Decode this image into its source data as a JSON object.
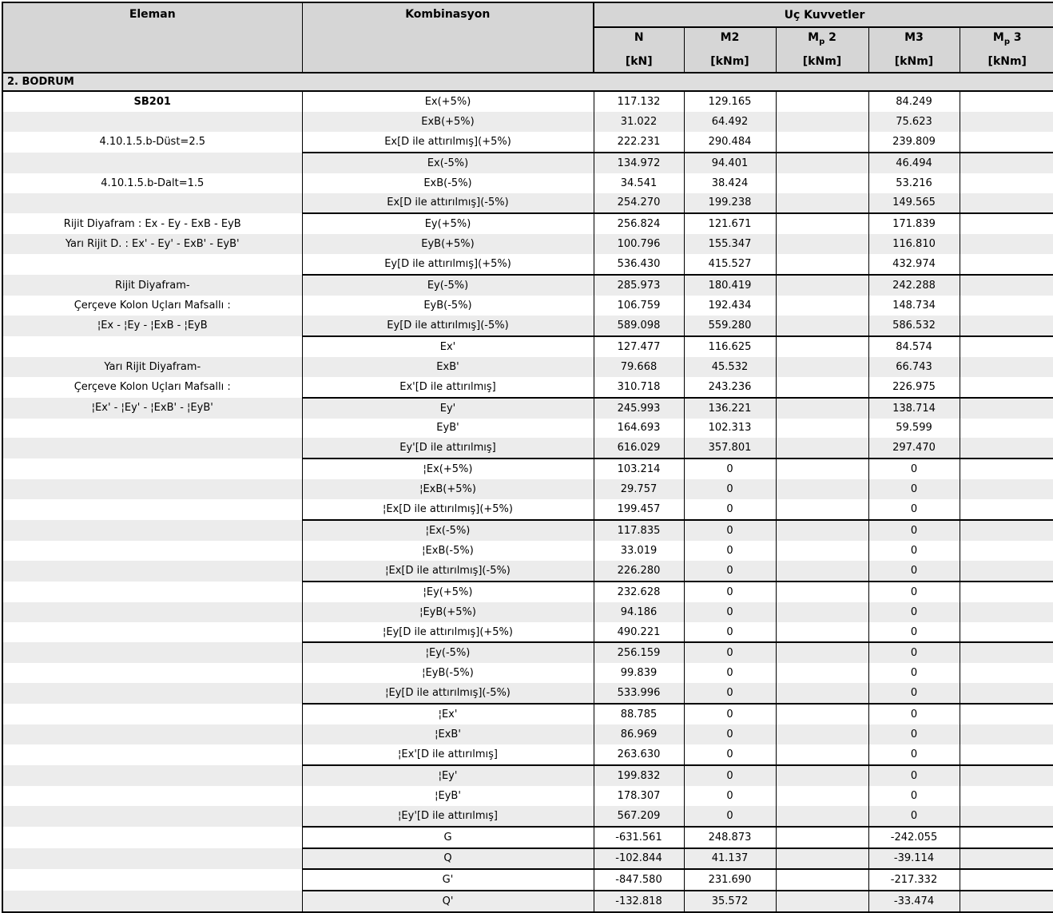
{
  "table": {
    "header": {
      "eleman": "Eleman",
      "kombinasyon": "Kombinasyon",
      "uc_kuvvetler": "Uç Kuvvetler",
      "cols": [
        {
          "main": "N",
          "sub": "",
          "tail": "",
          "unit": "[kN]"
        },
        {
          "main": "M2",
          "sub": "",
          "tail": "",
          "unit": "[kNm]"
        },
        {
          "main": "M",
          "sub": "p",
          "tail": " 2",
          "unit": "[kNm]"
        },
        {
          "main": "M3",
          "sub": "",
          "tail": "",
          "unit": "[kNm]"
        },
        {
          "main": "M",
          "sub": "p",
          "tail": " 3",
          "unit": "[kNm]"
        }
      ]
    },
    "section_title": "2. BODRUM",
    "rows": [
      {
        "eleman": "SB201",
        "eleman_bold": true,
        "komb": "Ex(+5%)",
        "n": "117.132",
        "m2": "129.165",
        "mp2": "",
        "m3": "84.249",
        "mp3": "",
        "group_end": false
      },
      {
        "eleman": "",
        "eleman_bold": false,
        "komb": "ExB(+5%)",
        "n": "31.022",
        "m2": "64.492",
        "mp2": "",
        "m3": "75.623",
        "mp3": "",
        "group_end": false
      },
      {
        "eleman": "4.10.1.5.b-Düst=2.5",
        "eleman_bold": false,
        "komb": "Ex[D ile attırılmış](+5%)",
        "n": "222.231",
        "m2": "290.484",
        "mp2": "",
        "m3": "239.809",
        "mp3": "",
        "group_end": true
      },
      {
        "eleman": "",
        "eleman_bold": false,
        "komb": "Ex(-5%)",
        "n": "134.972",
        "m2": "94.401",
        "mp2": "",
        "m3": "46.494",
        "mp3": "",
        "group_end": false
      },
      {
        "eleman": "4.10.1.5.b-Dalt=1.5",
        "eleman_bold": false,
        "komb": "ExB(-5%)",
        "n": "34.541",
        "m2": "38.424",
        "mp2": "",
        "m3": "53.216",
        "mp3": "",
        "group_end": false
      },
      {
        "eleman": "",
        "eleman_bold": false,
        "komb": "Ex[D ile attırılmış](-5%)",
        "n": "254.270",
        "m2": "199.238",
        "mp2": "",
        "m3": "149.565",
        "mp3": "",
        "group_end": true
      },
      {
        "eleman": "Rijit Diyafram : Ex - Ey - ExB - EyB",
        "eleman_bold": false,
        "komb": "Ey(+5%)",
        "n": "256.824",
        "m2": "121.671",
        "mp2": "",
        "m3": "171.839",
        "mp3": "",
        "group_end": false
      },
      {
        "eleman": "Yarı Rijit D. : Ex' - Ey' - ExB' - EyB'",
        "eleman_bold": false,
        "komb": "EyB(+5%)",
        "n": "100.796",
        "m2": "155.347",
        "mp2": "",
        "m3": "116.810",
        "mp3": "",
        "group_end": false
      },
      {
        "eleman": "",
        "eleman_bold": false,
        "komb": "Ey[D ile attırılmış](+5%)",
        "n": "536.430",
        "m2": "415.527",
        "mp2": "",
        "m3": "432.974",
        "mp3": "",
        "group_end": true
      },
      {
        "eleman": "Rijit Diyafram-",
        "eleman_bold": false,
        "komb": "Ey(-5%)",
        "n": "285.973",
        "m2": "180.419",
        "mp2": "",
        "m3": "242.288",
        "mp3": "",
        "group_end": false
      },
      {
        "eleman": "Çerçeve Kolon Uçları Mafsallı :",
        "eleman_bold": false,
        "komb": "EyB(-5%)",
        "n": "106.759",
        "m2": "192.434",
        "mp2": "",
        "m3": "148.734",
        "mp3": "",
        "group_end": false
      },
      {
        "eleman": "¦Ex - ¦Ey - ¦ExB - ¦EyB",
        "eleman_bold": false,
        "komb": "Ey[D ile attırılmış](-5%)",
        "n": "589.098",
        "m2": "559.280",
        "mp2": "",
        "m3": "586.532",
        "mp3": "",
        "group_end": true
      },
      {
        "eleman": "",
        "eleman_bold": false,
        "komb": "Ex'",
        "n": "127.477",
        "m2": "116.625",
        "mp2": "",
        "m3": "84.574",
        "mp3": "",
        "group_end": false
      },
      {
        "eleman": "Yarı Rijit Diyafram-",
        "eleman_bold": false,
        "komb": "ExB'",
        "n": "79.668",
        "m2": "45.532",
        "mp2": "",
        "m3": "66.743",
        "mp3": "",
        "group_end": false
      },
      {
        "eleman": "Çerçeve Kolon Uçları Mafsallı :",
        "eleman_bold": false,
        "komb": "Ex'[D ile attırılmış]",
        "n": "310.718",
        "m2": "243.236",
        "mp2": "",
        "m3": "226.975",
        "mp3": "",
        "group_end": true
      },
      {
        "eleman": "¦Ex' - ¦Ey' - ¦ExB' - ¦EyB'",
        "eleman_bold": false,
        "komb": "Ey'",
        "n": "245.993",
        "m2": "136.221",
        "mp2": "",
        "m3": "138.714",
        "mp3": "",
        "group_end": false
      },
      {
        "eleman": "",
        "eleman_bold": false,
        "komb": "EyB'",
        "n": "164.693",
        "m2": "102.313",
        "mp2": "",
        "m3": "59.599",
        "mp3": "",
        "group_end": false
      },
      {
        "eleman": "",
        "eleman_bold": false,
        "komb": "Ey'[D ile attırılmış]",
        "n": "616.029",
        "m2": "357.801",
        "mp2": "",
        "m3": "297.470",
        "mp3": "",
        "group_end": true
      },
      {
        "eleman": "",
        "eleman_bold": false,
        "komb": "¦Ex(+5%)",
        "n": "103.214",
        "m2": "0",
        "mp2": "",
        "m3": "0",
        "mp3": "",
        "group_end": false
      },
      {
        "eleman": "",
        "eleman_bold": false,
        "komb": "¦ExB(+5%)",
        "n": "29.757",
        "m2": "0",
        "mp2": "",
        "m3": "0",
        "mp3": "",
        "group_end": false
      },
      {
        "eleman": "",
        "eleman_bold": false,
        "komb": "¦Ex[D ile attırılmış](+5%)",
        "n": "199.457",
        "m2": "0",
        "mp2": "",
        "m3": "0",
        "mp3": "",
        "group_end": true
      },
      {
        "eleman": "",
        "eleman_bold": false,
        "komb": "¦Ex(-5%)",
        "n": "117.835",
        "m2": "0",
        "mp2": "",
        "m3": "0",
        "mp3": "",
        "group_end": false
      },
      {
        "eleman": "",
        "eleman_bold": false,
        "komb": "¦ExB(-5%)",
        "n": "33.019",
        "m2": "0",
        "mp2": "",
        "m3": "0",
        "mp3": "",
        "group_end": false
      },
      {
        "eleman": "",
        "eleman_bold": false,
        "komb": "¦Ex[D ile attırılmış](-5%)",
        "n": "226.280",
        "m2": "0",
        "mp2": "",
        "m3": "0",
        "mp3": "",
        "group_end": true
      },
      {
        "eleman": "",
        "eleman_bold": false,
        "komb": "¦Ey(+5%)",
        "n": "232.628",
        "m2": "0",
        "mp2": "",
        "m3": "0",
        "mp3": "",
        "group_end": false
      },
      {
        "eleman": "",
        "eleman_bold": false,
        "komb": "¦EyB(+5%)",
        "n": "94.186",
        "m2": "0",
        "mp2": "",
        "m3": "0",
        "mp3": "",
        "group_end": false
      },
      {
        "eleman": "",
        "eleman_bold": false,
        "komb": "¦Ey[D ile attırılmış](+5%)",
        "n": "490.221",
        "m2": "0",
        "mp2": "",
        "m3": "0",
        "mp3": "",
        "group_end": true
      },
      {
        "eleman": "",
        "eleman_bold": false,
        "komb": "¦Ey(-5%)",
        "n": "256.159",
        "m2": "0",
        "mp2": "",
        "m3": "0",
        "mp3": "",
        "group_end": false
      },
      {
        "eleman": "",
        "eleman_bold": false,
        "komb": "¦EyB(-5%)",
        "n": "99.839",
        "m2": "0",
        "mp2": "",
        "m3": "0",
        "mp3": "",
        "group_end": false
      },
      {
        "eleman": "",
        "eleman_bold": false,
        "komb": "¦Ey[D ile attırılmış](-5%)",
        "n": "533.996",
        "m2": "0",
        "mp2": "",
        "m3": "0",
        "mp3": "",
        "group_end": true
      },
      {
        "eleman": "",
        "eleman_bold": false,
        "komb": "¦Ex'",
        "n": "88.785",
        "m2": "0",
        "mp2": "",
        "m3": "0",
        "mp3": "",
        "group_end": false
      },
      {
        "eleman": "",
        "eleman_bold": false,
        "komb": "¦ExB'",
        "n": "86.969",
        "m2": "0",
        "mp2": "",
        "m3": "0",
        "mp3": "",
        "group_end": false
      },
      {
        "eleman": "",
        "eleman_bold": false,
        "komb": "¦Ex'[D ile attırılmış]",
        "n": "263.630",
        "m2": "0",
        "mp2": "",
        "m3": "0",
        "mp3": "",
        "group_end": true
      },
      {
        "eleman": "",
        "eleman_bold": false,
        "komb": "¦Ey'",
        "n": "199.832",
        "m2": "0",
        "mp2": "",
        "m3": "0",
        "mp3": "",
        "group_end": false
      },
      {
        "eleman": "",
        "eleman_bold": false,
        "komb": "¦EyB'",
        "n": "178.307",
        "m2": "0",
        "mp2": "",
        "m3": "0",
        "mp3": "",
        "group_end": false
      },
      {
        "eleman": "",
        "eleman_bold": false,
        "komb": "¦Ey'[D ile attırılmış]",
        "n": "567.209",
        "m2": "0",
        "mp2": "",
        "m3": "0",
        "mp3": "",
        "group_end": true
      },
      {
        "eleman": "",
        "eleman_bold": false,
        "komb": "G",
        "n": "-631.561",
        "m2": "248.873",
        "mp2": "",
        "m3": "-242.055",
        "mp3": "",
        "group_end": true
      },
      {
        "eleman": "",
        "eleman_bold": false,
        "komb": "Q",
        "n": "-102.844",
        "m2": "41.137",
        "mp2": "",
        "m3": "-39.114",
        "mp3": "",
        "group_end": true
      },
      {
        "eleman": "",
        "eleman_bold": false,
        "komb": "G'",
        "n": "-847.580",
        "m2": "231.690",
        "mp2": "",
        "m3": "-217.332",
        "mp3": "",
        "group_end": true
      },
      {
        "eleman": "",
        "eleman_bold": false,
        "komb": "Q'",
        "n": "-132.818",
        "m2": "35.572",
        "mp2": "",
        "m3": "-33.474",
        "mp3": "",
        "group_end": false
      }
    ]
  }
}
